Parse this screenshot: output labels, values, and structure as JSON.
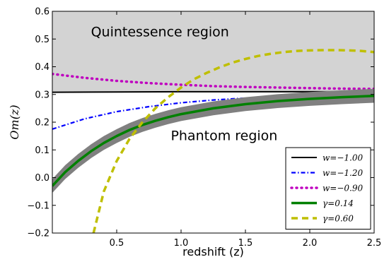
{
  "chart_data": {
    "type": "line",
    "xlabel": "redshift (z)",
    "ylabel": "Om(z)",
    "xlim": [
      0.0,
      2.5
    ],
    "ylim": [
      -0.2,
      0.6
    ],
    "xticks": [
      "0.5",
      "1.0",
      "1.5",
      "2.0",
      "2.5"
    ],
    "yticks": [
      "0.6",
      "0.5",
      "0.4",
      "0.3",
      "0.2",
      "0.1",
      "0.0",
      "−0.1",
      "−0.2"
    ],
    "grid": false,
    "legend_position": "bottom-right",
    "shaded_region": {
      "y_from": 0.31,
      "y_to": 0.6,
      "color": "#d3d3d3"
    },
    "annotations": [
      {
        "text": "Quintessence region",
        "x": 0.3,
        "y": 0.51
      },
      {
        "text": "Phantom region",
        "x": 0.92,
        "y": 0.135
      }
    ],
    "series": [
      {
        "name": "w=−1.00",
        "color": "#000000",
        "style": "solid",
        "x": [
          0.0,
          0.5,
          1.0,
          1.5,
          2.0,
          2.5
        ],
        "y": [
          0.308,
          0.309,
          0.31,
          0.31,
          0.31,
          0.31
        ]
      },
      {
        "name": "w=−1.20",
        "color": "#0000ff",
        "style": "dashdot",
        "x": [
          0.0,
          0.25,
          0.5,
          0.75,
          1.0,
          1.25,
          1.5,
          1.75,
          2.0,
          2.25,
          2.5
        ],
        "y": [
          0.175,
          0.212,
          0.238,
          0.256,
          0.27,
          0.28,
          0.287,
          0.292,
          0.296,
          0.299,
          0.302
        ]
      },
      {
        "name": "w=−0.90",
        "color": "#bf00bf",
        "style": "dotted",
        "x": [
          0.0,
          0.25,
          0.5,
          0.75,
          1.0,
          1.25,
          1.5,
          1.75,
          2.0,
          2.25,
          2.5
        ],
        "y": [
          0.374,
          0.36,
          0.349,
          0.341,
          0.335,
          0.33,
          0.327,
          0.325,
          0.323,
          0.321,
          0.32
        ]
      },
      {
        "name": "γ=0.14",
        "color": "#008000",
        "style": "solid-band",
        "band_color": "#808080",
        "band_halfwidth": 0.025,
        "x": [
          0.0,
          0.1,
          0.2,
          0.3,
          0.4,
          0.5,
          0.6,
          0.7,
          0.8,
          0.9,
          1.0,
          1.25,
          1.5,
          1.75,
          2.0,
          2.25,
          2.5
        ],
        "y": [
          -0.03,
          0.02,
          0.06,
          0.095,
          0.125,
          0.15,
          0.172,
          0.19,
          0.205,
          0.218,
          0.229,
          0.25,
          0.265,
          0.276,
          0.284,
          0.29,
          0.295
        ]
      },
      {
        "name": "γ=0.60",
        "color": "#bfbf00",
        "style": "dashed",
        "x": [
          0.32,
          0.4,
          0.5,
          0.6,
          0.7,
          0.8,
          0.9,
          1.0,
          1.1,
          1.2,
          1.3,
          1.4,
          1.5,
          1.6,
          1.7,
          1.8,
          1.9,
          2.0,
          2.1,
          2.2,
          2.3,
          2.4,
          2.5
        ],
        "y": [
          -0.2,
          -0.05,
          0.06,
          0.14,
          0.2,
          0.25,
          0.29,
          0.325,
          0.355,
          0.378,
          0.398,
          0.415,
          0.428,
          0.439,
          0.447,
          0.453,
          0.457,
          0.459,
          0.46,
          0.46,
          0.459,
          0.457,
          0.453
        ]
      }
    ]
  }
}
